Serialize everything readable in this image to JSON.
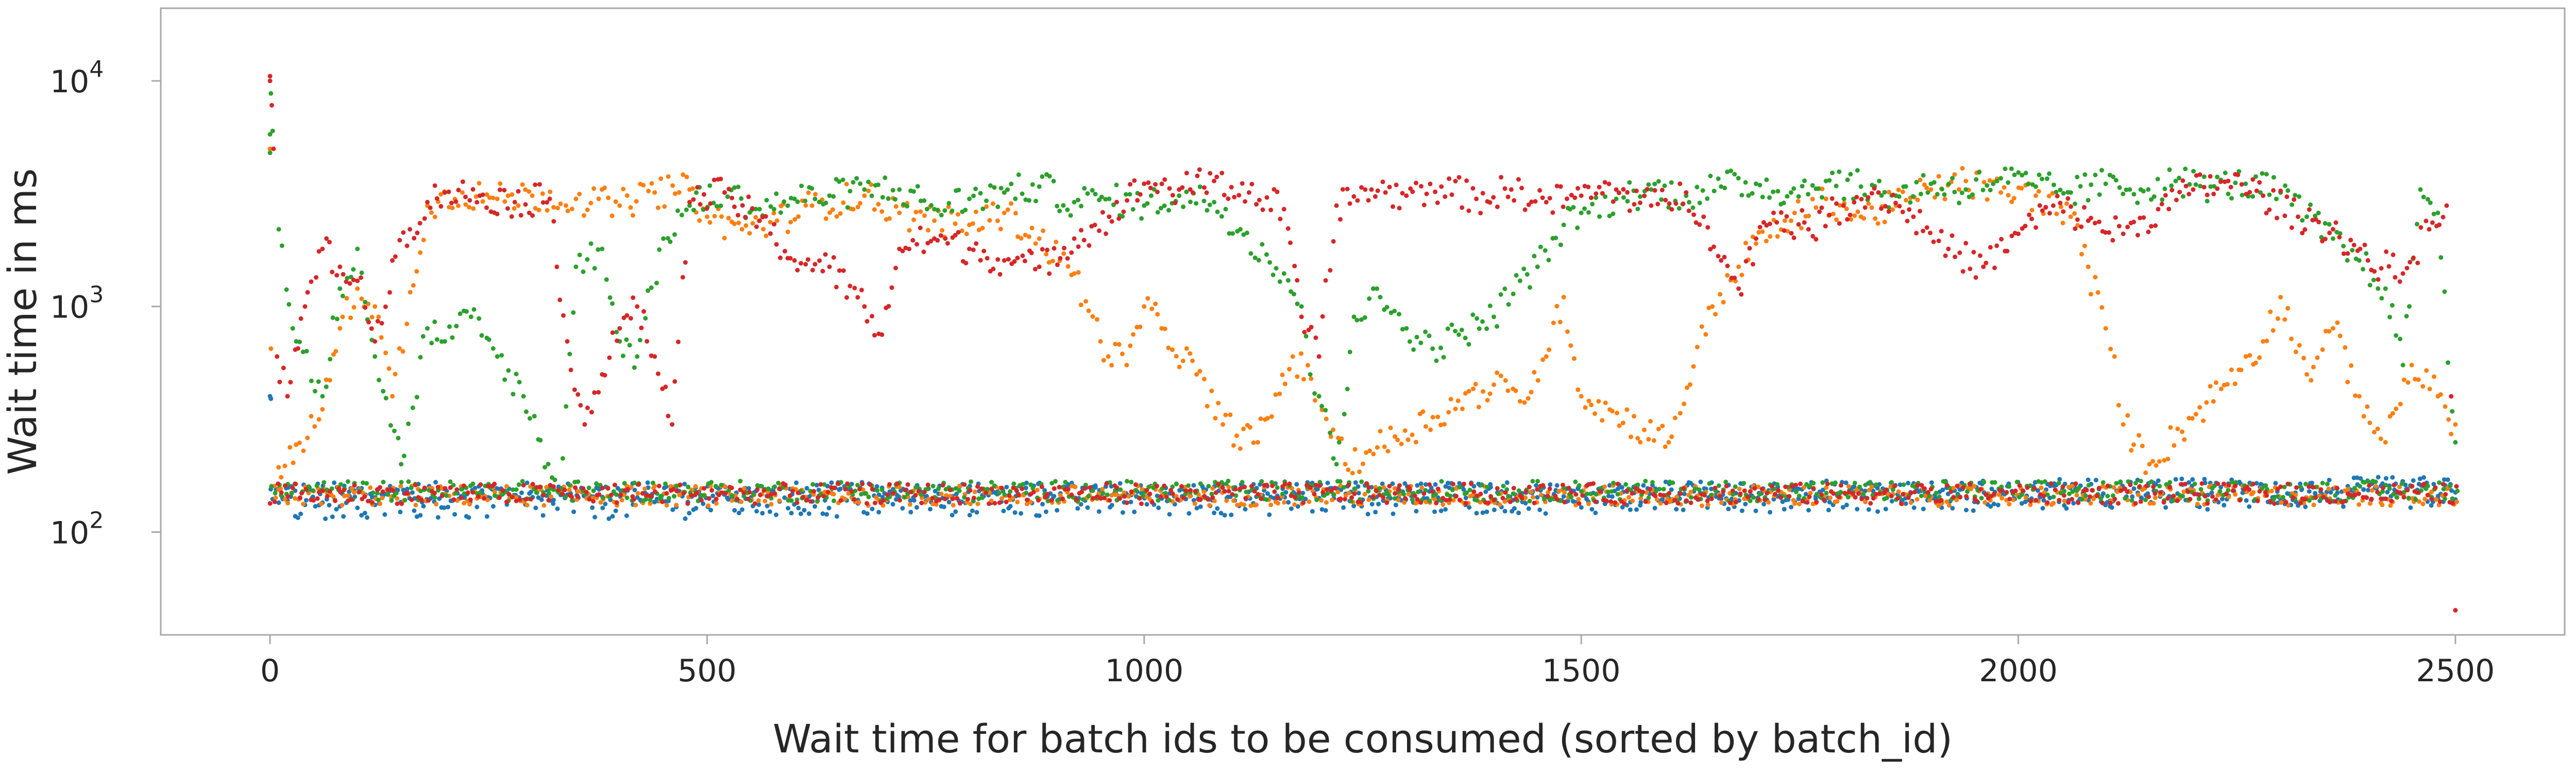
{
  "chart_data": {
    "type": "scatter",
    "title": "",
    "xlabel": "Wait time for batch ids to be consumed (sorted by batch_id)",
    "ylabel": "Wait time in ms",
    "xlim": [
      -125,
      2625
    ],
    "ylim": [
      35,
      21000
    ],
    "yscale": "log",
    "grid": false,
    "legend": "none",
    "xticks": [
      {
        "value": 0,
        "label": "0"
      },
      {
        "value": 500,
        "label": "500"
      },
      {
        "value": 1000,
        "label": "1000"
      },
      {
        "value": 1500,
        "label": "1500"
      },
      {
        "value": 2000,
        "label": "2000"
      },
      {
        "value": 2500,
        "label": "2500"
      }
    ],
    "yticks": [
      {
        "value": 100,
        "base": "10",
        "exp": "2"
      },
      {
        "value": 1000,
        "base": "10",
        "exp": "3"
      },
      {
        "value": 10000,
        "base": "10",
        "exp": "4"
      }
    ],
    "series": [
      {
        "color": "#1f77b4",
        "baseline": 150,
        "points": [
          [
            0,
            400
          ],
          [
            1,
            390
          ],
          [
            3,
            140
          ],
          [
            10,
            135
          ],
          [
            20,
            138
          ],
          [
            40,
            132
          ],
          [
            60,
            135
          ],
          [
            80,
            130
          ],
          [
            100,
            128
          ],
          [
            120,
            132
          ],
          [
            2500,
            150
          ]
        ]
      },
      {
        "color": "#ff7f0e",
        "baseline": 145,
        "points": [
          [
            0,
            5000
          ],
          [
            1,
            650
          ],
          [
            5,
            160
          ],
          [
            60,
            350
          ],
          [
            80,
            800
          ],
          [
            100,
            1200
          ],
          [
            120,
            1000
          ],
          [
            140,
            400
          ],
          [
            180,
            2800
          ],
          [
            220,
            3200
          ],
          [
            260,
            3000
          ],
          [
            300,
            3100
          ],
          [
            350,
            3000
          ],
          [
            400,
            2800
          ],
          [
            440,
            3200
          ],
          [
            480,
            3300
          ],
          [
            500,
            2500
          ],
          [
            540,
            2200
          ],
          [
            580,
            2400
          ],
          [
            620,
            2800
          ],
          [
            680,
            3100
          ],
          [
            720,
            2600
          ],
          [
            760,
            2400
          ],
          [
            800,
            2300
          ],
          [
            840,
            2600
          ],
          [
            880,
            2000
          ],
          [
            920,
            1400
          ],
          [
            950,
            700
          ],
          [
            980,
            550
          ],
          [
            1000,
            1000
          ],
          [
            1020,
            800
          ],
          [
            1060,
            500
          ],
          [
            1090,
            300
          ],
          [
            1130,
            250
          ],
          [
            1170,
            600
          ],
          [
            1200,
            400
          ],
          [
            1230,
            200
          ],
          [
            1400,
            450
          ],
          [
            1430,
            380
          ],
          [
            1460,
            600
          ],
          [
            1480,
            1100
          ],
          [
            1500,
            400
          ],
          [
            1600,
            250
          ],
          [
            1650,
            1000
          ],
          [
            1680,
            1500
          ],
          [
            1700,
            1900
          ],
          [
            1740,
            2400
          ],
          [
            1780,
            3000
          ],
          [
            1820,
            2500
          ],
          [
            1860,
            2800
          ],
          [
            1900,
            3300
          ],
          [
            1940,
            3600
          ],
          [
            1980,
            3200
          ],
          [
            2020,
            3100
          ],
          [
            2060,
            2500
          ],
          [
            2080,
            1500
          ],
          [
            2100,
            800
          ],
          [
            2110,
            600
          ],
          [
            2120,
            300
          ],
          [
            2150,
            200
          ],
          [
            2280,
            700
          ],
          [
            2300,
            1100
          ],
          [
            2330,
            500
          ],
          [
            2360,
            800
          ],
          [
            2390,
            400
          ],
          [
            2420,
            250
          ],
          [
            2450,
            550
          ],
          [
            2480,
            400
          ],
          [
            2500,
            300
          ]
        ]
      },
      {
        "color": "#2ca02c",
        "baseline": 152,
        "points": [
          [
            0,
            4800
          ],
          [
            0,
            5800
          ],
          [
            1,
            8800
          ],
          [
            3,
            6000
          ],
          [
            10,
            2200
          ],
          [
            30,
            700
          ],
          [
            60,
            400
          ],
          [
            80,
            1200
          ],
          [
            100,
            1800
          ],
          [
            120,
            600
          ],
          [
            150,
            200
          ],
          [
            180,
            800
          ],
          [
            200,
            700
          ],
          [
            230,
            900
          ],
          [
            260,
            600
          ],
          [
            290,
            400
          ],
          [
            330,
            150
          ],
          [
            350,
            1500
          ],
          [
            380,
            1800
          ],
          [
            400,
            700
          ],
          [
            420,
            600
          ],
          [
            450,
            2000
          ],
          [
            480,
            2800
          ],
          [
            520,
            3200
          ],
          [
            560,
            2700
          ],
          [
            600,
            3000
          ],
          [
            640,
            3100
          ],
          [
            680,
            3300
          ],
          [
            720,
            3300
          ],
          [
            760,
            2700
          ],
          [
            800,
            3000
          ],
          [
            840,
            3200
          ],
          [
            880,
            3400
          ],
          [
            920,
            2900
          ],
          [
            960,
            3000
          ],
          [
            1000,
            2800
          ],
          [
            1040,
            3100
          ],
          [
            1080,
            2900
          ],
          [
            1110,
            2200
          ],
          [
            1140,
            1700
          ],
          [
            1160,
            1400
          ],
          [
            1180,
            1000
          ],
          [
            1190,
            500
          ],
          [
            1200,
            400
          ],
          [
            1220,
            200
          ],
          [
            1240,
            900
          ],
          [
            1270,
            1100
          ],
          [
            1300,
            800
          ],
          [
            1330,
            650
          ],
          [
            1360,
            750
          ],
          [
            1400,
            900
          ],
          [
            1430,
            1300
          ],
          [
            1450,
            1500
          ],
          [
            1480,
            2300
          ],
          [
            1500,
            2600
          ],
          [
            1540,
            3000
          ],
          [
            1580,
            3300
          ],
          [
            1620,
            3100
          ],
          [
            1660,
            3400
          ],
          [
            1700,
            3500
          ],
          [
            1740,
            3200
          ],
          [
            1780,
            3600
          ],
          [
            1820,
            3400
          ],
          [
            1860,
            3100
          ],
          [
            1900,
            3500
          ],
          [
            1940,
            3300
          ],
          [
            1980,
            3700
          ],
          [
            2020,
            3400
          ],
          [
            2060,
            3200
          ],
          [
            2100,
            3500
          ],
          [
            2140,
            3300
          ],
          [
            2180,
            3600
          ],
          [
            2220,
            3400
          ],
          [
            2260,
            3500
          ],
          [
            2300,
            3200
          ],
          [
            2330,
            2500
          ],
          [
            2360,
            2000
          ],
          [
            2390,
            1600
          ],
          [
            2420,
            1200
          ],
          [
            2440,
            550
          ],
          [
            2460,
            3300
          ],
          [
            2480,
            2600
          ],
          [
            2500,
            250
          ]
        ]
      },
      {
        "color": "#d62728",
        "baseline": 148,
        "points": [
          [
            0,
            10500
          ],
          [
            0,
            10000
          ],
          [
            2,
            7800
          ],
          [
            4,
            5000
          ],
          [
            8,
            600
          ],
          [
            20,
            400
          ],
          [
            40,
            1000
          ],
          [
            60,
            1800
          ],
          [
            80,
            1500
          ],
          [
            100,
            1300
          ],
          [
            120,
            700
          ],
          [
            140,
            1600
          ],
          [
            160,
            2200
          ],
          [
            180,
            2900
          ],
          [
            200,
            3200
          ],
          [
            240,
            3100
          ],
          [
            280,
            2900
          ],
          [
            320,
            3000
          ],
          [
            340,
            700
          ],
          [
            360,
            300
          ],
          [
            380,
            500
          ],
          [
            400,
            800
          ],
          [
            420,
            1000
          ],
          [
            440,
            600
          ],
          [
            460,
            300
          ],
          [
            480,
            2900
          ],
          [
            520,
            3200
          ],
          [
            560,
            2400
          ],
          [
            600,
            1600
          ],
          [
            640,
            1500
          ],
          [
            680,
            1000
          ],
          [
            700,
            750
          ],
          [
            720,
            1800
          ],
          [
            760,
            2000
          ],
          [
            800,
            1800
          ],
          [
            840,
            1600
          ],
          [
            880,
            1500
          ],
          [
            920,
            2000
          ],
          [
            960,
            2500
          ],
          [
            1000,
            3500
          ],
          [
            1040,
            3300
          ],
          [
            1080,
            3600
          ],
          [
            1120,
            3200
          ],
          [
            1160,
            2700
          ],
          [
            1180,
            900
          ],
          [
            1200,
            600
          ],
          [
            1220,
            2800
          ],
          [
            1260,
            3300
          ],
          [
            1300,
            3100
          ],
          [
            1340,
            3400
          ],
          [
            1380,
            3000
          ],
          [
            1420,
            3300
          ],
          [
            1460,
            2900
          ],
          [
            1500,
            3100
          ],
          [
            1540,
            3300
          ],
          [
            1580,
            2800
          ],
          [
            1620,
            3200
          ],
          [
            1640,
            2500
          ],
          [
            1660,
            1600
          ],
          [
            1680,
            1200
          ],
          [
            1700,
            2000
          ],
          [
            1720,
            2600
          ],
          [
            1760,
            2200
          ],
          [
            1800,
            2800
          ],
          [
            1840,
            3200
          ],
          [
            1880,
            2500
          ],
          [
            1920,
            1800
          ],
          [
            1960,
            1500
          ],
          [
            2000,
            2100
          ],
          [
            2040,
            2800
          ],
          [
            2080,
            2400
          ],
          [
            2120,
            2100
          ],
          [
            2160,
            2700
          ],
          [
            2200,
            3300
          ],
          [
            2240,
            3600
          ],
          [
            2280,
            3100
          ],
          [
            2320,
            2500
          ],
          [
            2360,
            2200
          ],
          [
            2400,
            1600
          ],
          [
            2440,
            1400
          ],
          [
            2470,
            2200
          ],
          [
            2490,
            2800
          ],
          [
            2500,
            45
          ]
        ]
      }
    ]
  }
}
